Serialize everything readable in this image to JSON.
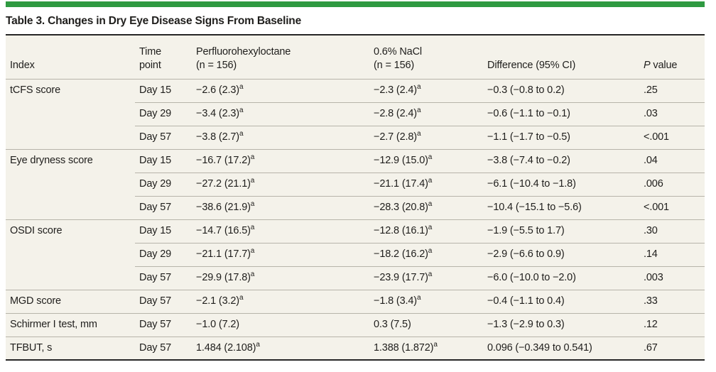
{
  "title": "Table 3. Changes in Dry Eye Disease Signs From Baseline",
  "colors": {
    "accent_green": "#2f9a41",
    "table_bg": "#f4f2ea",
    "rule_dark": "#262626",
    "rule_light": "#b7b4aa",
    "text": "#1f1e1c"
  },
  "columns": {
    "index": "Index",
    "time_l1": "Time",
    "time_l2": "point",
    "drug_l1": "Perfluorohexyloctane",
    "drug_l2": "(n = 156)",
    "nacl_l1": "0.6% NaCl",
    "nacl_l2": "(n = 156)",
    "diff": "Difference (95% CI)",
    "p_italic": "P",
    "p_rest": " value"
  },
  "rows": [
    {
      "index": "tCFS score",
      "new_group": true,
      "time": "Day 15",
      "drug": "−2.6 (2.3)",
      "drug_sup": "a",
      "nacl": "−2.3 (2.4)",
      "nacl_sup": "a",
      "diff": "−0.3 (−0.8 to 0.2)",
      "p": ".25"
    },
    {
      "index": "",
      "new_group": false,
      "time": "Day 29",
      "drug": "−3.4 (2.3)",
      "drug_sup": "a",
      "nacl": "−2.8 (2.4)",
      "nacl_sup": "a",
      "diff": "−0.6 (−1.1 to −0.1)",
      "p": ".03"
    },
    {
      "index": "",
      "new_group": false,
      "time": "Day 57",
      "drug": "−3.8 (2.7)",
      "drug_sup": "a",
      "nacl": "−2.7 (2.8)",
      "nacl_sup": "a",
      "diff": "−1.1 (−1.7 to −0.5)",
      "p": "<.001"
    },
    {
      "index": "Eye dryness score",
      "new_group": true,
      "time": "Day 15",
      "drug": "−16.7 (17.2)",
      "drug_sup": "a",
      "nacl": "−12.9 (15.0)",
      "nacl_sup": "a",
      "diff": "−3.8 (−7.4 to −0.2)",
      "p": ".04"
    },
    {
      "index": "",
      "new_group": false,
      "time": "Day 29",
      "drug": "−27.2 (21.1)",
      "drug_sup": "a",
      "nacl": "−21.1 (17.4)",
      "nacl_sup": "a",
      "diff": "−6.1 (−10.4 to −1.8)",
      "p": ".006"
    },
    {
      "index": "",
      "new_group": false,
      "time": "Day 57",
      "drug": "−38.6 (21.9)",
      "drug_sup": "a",
      "nacl": "−28.3 (20.8)",
      "nacl_sup": "a",
      "diff": "−10.4 (−15.1 to −5.6)",
      "p": "<.001"
    },
    {
      "index": "OSDI score",
      "new_group": true,
      "time": "Day 15",
      "drug": "−14.7 (16.5)",
      "drug_sup": "a",
      "nacl": "−12.8 (16.1)",
      "nacl_sup": "a",
      "diff": "−1.9 (−5.5 to 1.7)",
      "p": ".30"
    },
    {
      "index": "",
      "new_group": false,
      "time": "Day 29",
      "drug": "−21.1 (17.7)",
      "drug_sup": "a",
      "nacl": "−18.2 (16.2)",
      "nacl_sup": "a",
      "diff": "−2.9 (−6.6 to 0.9)",
      "p": ".14"
    },
    {
      "index": "",
      "new_group": false,
      "time": "Day 57",
      "drug": "−29.9 (17.8)",
      "drug_sup": "a",
      "nacl": "−23.9 (17.7)",
      "nacl_sup": "a",
      "diff": "−6.0 (−10.0 to −2.0)",
      "p": ".003"
    },
    {
      "index": "MGD score",
      "new_group": true,
      "time": "Day 57",
      "drug": "−2.1 (3.2)",
      "drug_sup": "a",
      "nacl": "−1.8 (3.4)",
      "nacl_sup": "a",
      "diff": "−0.4 (−1.1 to 0.4)",
      "p": ".33"
    },
    {
      "index": "Schirmer I test, mm",
      "new_group": true,
      "time": "Day 57",
      "drug": "−1.0 (7.2)",
      "drug_sup": null,
      "nacl": "0.3 (7.5)",
      "nacl_sup": null,
      "diff": "−1.3 (−2.9 to 0.3)",
      "p": ".12"
    },
    {
      "index": "TFBUT, s",
      "new_group": true,
      "time": "Day 57",
      "drug": "1.484 (2.108)",
      "drug_sup": "a",
      "nacl": "1.388 (1.872)",
      "nacl_sup": "a",
      "diff": "0.096 (−0.349 to 0.541)",
      "p": ".67"
    }
  ]
}
